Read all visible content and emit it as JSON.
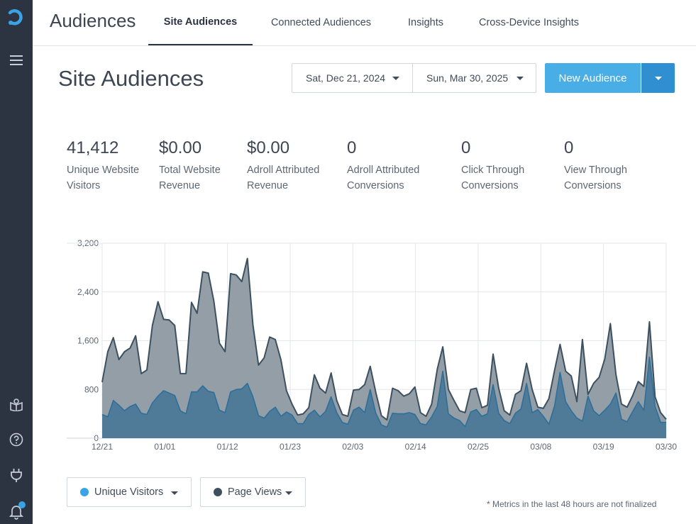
{
  "app": {
    "title": "Audiences"
  },
  "tabs": [
    {
      "label": "Site Audiences",
      "active": true
    },
    {
      "label": "Connected Audiences",
      "active": false
    },
    {
      "label": "Insights",
      "active": false
    },
    {
      "label": "Cross-Device Insights",
      "active": false
    }
  ],
  "sidebar": {
    "icons": [
      "logo-icon",
      "menu-icon",
      "book-icon",
      "help-icon",
      "plug-icon",
      "bell-icon"
    ],
    "notification_color": "#3aa3e3"
  },
  "page": {
    "title": "Site Audiences",
    "date_start": "Sat, Dec 21, 2024",
    "date_end": "Sun, Mar 30, 2025",
    "new_button": "New Audience"
  },
  "metrics": [
    {
      "value": "41,412",
      "label": "Unique Website Visitors"
    },
    {
      "value": "$0.00",
      "label": "Total Website Revenue"
    },
    {
      "value": "$0.00",
      "label": "Adroll Attributed Revenue"
    },
    {
      "value": "0",
      "label": "Adroll Attributed Conversions"
    },
    {
      "value": "0",
      "label": "Click Through Conversions"
    },
    {
      "value": "0",
      "label": "View Through Conversions"
    }
  ],
  "legend": {
    "unique_visitors": "Unique Visitors",
    "page_views": "Page Views",
    "unique_visitors_color": "#3aa3e3",
    "page_views_color": "#3d5060"
  },
  "footnote": "* Metrics in the last 48 hours are not finalized",
  "chart_data": {
    "type": "area",
    "ylim": [
      0,
      3200
    ],
    "y_ticks": [
      "0",
      "800",
      "1,600",
      "2,400",
      "3,200"
    ],
    "y_tick_values": [
      0,
      800,
      1600,
      2400,
      3200
    ],
    "x_tick_labels": [
      "12/21",
      "01/01",
      "01/12",
      "01/23",
      "02/03",
      "02/14",
      "02/25",
      "03/08",
      "03/19",
      "03/30"
    ],
    "grid": true,
    "series": [
      {
        "name": "Page Views",
        "color": "#3d5060",
        "values": [
          920,
          1420,
          1650,
          1290,
          1420,
          1480,
          1680,
          1060,
          1120,
          1850,
          2240,
          1950,
          1940,
          1850,
          1060,
          1060,
          2230,
          2050,
          2730,
          2710,
          2250,
          1560,
          1420,
          2700,
          2680,
          2570,
          2950,
          1860,
          1200,
          1320,
          1660,
          1620,
          1290,
          780,
          560,
          380,
          400,
          500,
          1040,
          820,
          740,
          1070,
          620,
          390,
          360,
          790,
          800,
          880,
          1180,
          750,
          370,
          300,
          820,
          780,
          690,
          730,
          840,
          420,
          360,
          560,
          1130,
          1500,
          800,
          620,
          450,
          420,
          800,
          820,
          500,
          540,
          1380,
          820,
          450,
          380,
          720,
          780,
          1230,
          800,
          510,
          490,
          650,
          1110,
          1540,
          1100,
          1020,
          600,
          1620,
          720,
          900,
          1000,
          1300,
          1880,
          1040,
          560,
          510,
          700,
          930,
          850,
          1910,
          680,
          420,
          310
        ]
      },
      {
        "name": "Unique Visitors",
        "color": "#3aa3e3",
        "values": [
          390,
          350,
          620,
          540,
          450,
          520,
          560,
          410,
          390,
          580,
          690,
          780,
          740,
          700,
          450,
          400,
          760,
          760,
          860,
          770,
          750,
          460,
          420,
          760,
          800,
          810,
          900,
          680,
          370,
          330,
          440,
          510,
          360,
          430,
          380,
          240,
          240,
          390,
          460,
          350,
          440,
          680,
          420,
          260,
          230,
          460,
          510,
          420,
          800,
          410,
          220,
          180,
          410,
          400,
          400,
          420,
          390,
          240,
          220,
          350,
          520,
          1100,
          400,
          330,
          290,
          190,
          430,
          470,
          360,
          400,
          880,
          410,
          290,
          240,
          410,
          480,
          900,
          420,
          470,
          360,
          230,
          530,
          1080,
          600,
          450,
          330,
          280,
          690,
          450,
          370,
          460,
          560,
          740,
          310,
          270,
          440,
          600,
          460,
          1330,
          520,
          260,
          260
        ]
      }
    ]
  }
}
